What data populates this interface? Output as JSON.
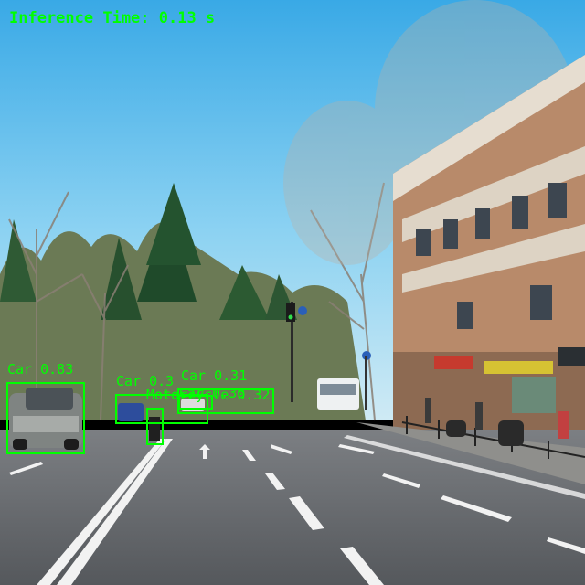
{
  "overlay": {
    "inference_text": "Inference Time: 0.13 s",
    "color": "#00ff00"
  },
  "detections": [
    {
      "label": "Car 0.83"
    },
    {
      "label": "Car 0.3"
    },
    {
      "label": "Car 0.31"
    },
    {
      "label": "Motorcycle 0.32"
    },
    {
      "label": "Car 0.36"
    }
  ]
}
